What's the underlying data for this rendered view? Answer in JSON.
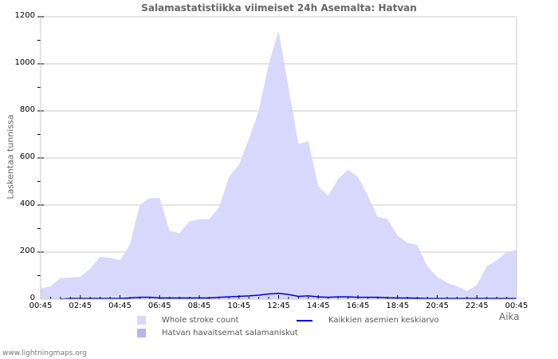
{
  "header": {
    "title": "Salamastatistiikka viimeiset 24h Asemalta: Hatvan"
  },
  "footer": {
    "source": "www.lightningmaps.org"
  },
  "legend": {
    "whole": "Whole stroke count",
    "station": "Hatvan havaitsemat salamaniskut",
    "average": "Kaikkien asemien keskiarvo"
  },
  "colors": {
    "whole": "#d8d8fc",
    "station": "#b4b4f8",
    "average": "#0000cc",
    "grid": "#c8c8c8"
  },
  "chart_data": {
    "type": "area",
    "title": "Salamastatistiikka viimeiset 24h Asemalta: Hatvan",
    "xlabel": "Aika",
    "ylabel": "Laskentaa tunnissa",
    "ylim": [
      0,
      1200
    ],
    "yticks": [
      "0",
      "200",
      "400",
      "600",
      "800",
      "1000",
      "1200"
    ],
    "xticks": [
      "00:45",
      "02:45",
      "04:45",
      "06:45",
      "08:45",
      "10:45",
      "12:45",
      "14:45",
      "16:45",
      "18:45",
      "20:45",
      "22:45",
      "00:45"
    ],
    "grid": true,
    "legend_position": "bottom",
    "x": [
      "00:45",
      "01:15",
      "01:45",
      "02:15",
      "02:45",
      "03:15",
      "03:45",
      "04:15",
      "04:45",
      "05:15",
      "05:45",
      "06:15",
      "06:45",
      "07:15",
      "07:45",
      "08:15",
      "08:45",
      "09:15",
      "09:45",
      "10:15",
      "10:45",
      "11:15",
      "11:45",
      "12:15",
      "12:45",
      "13:15",
      "13:45",
      "14:15",
      "14:45",
      "15:15",
      "15:45",
      "16:15",
      "16:45",
      "17:15",
      "17:45",
      "18:15",
      "18:45",
      "19:15",
      "19:45",
      "20:15",
      "20:45",
      "21:15",
      "21:45",
      "22:15",
      "22:45",
      "23:15",
      "23:45",
      "00:15",
      "00:45"
    ],
    "series": [
      {
        "name": "Whole stroke count",
        "values": [
          45,
          55,
          90,
          92,
          95,
          130,
          180,
          175,
          165,
          230,
          400,
          430,
          430,
          290,
          280,
          330,
          340,
          340,
          390,
          520,
          570,
          680,
          800,
          1000,
          1140,
          900,
          660,
          670,
          480,
          440,
          510,
          550,
          520,
          440,
          350,
          340,
          270,
          240,
          230,
          140,
          95,
          70,
          55,
          35,
          60,
          140,
          165,
          200,
          210
        ]
      },
      {
        "name": "Hatvan havaitsemat salamaniskut",
        "values": [
          0,
          0,
          0,
          0,
          0,
          0,
          0,
          0,
          0,
          0,
          0,
          0,
          0,
          0,
          0,
          0,
          0,
          0,
          0,
          0,
          0,
          0,
          0,
          0,
          0,
          0,
          0,
          0,
          0,
          0,
          0,
          0,
          0,
          0,
          0,
          0,
          0,
          0,
          0,
          0,
          0,
          0,
          0,
          0,
          0,
          0,
          0,
          0,
          0
        ]
      },
      {
        "name": "Kaikkien asemien keskiarvo",
        "values": [
          0,
          0,
          0,
          3,
          3,
          3,
          3,
          3,
          3,
          5,
          8,
          8,
          5,
          5,
          5,
          5,
          5,
          5,
          8,
          10,
          12,
          14,
          17,
          22,
          25,
          20,
          12,
          14,
          10,
          8,
          10,
          10,
          8,
          8,
          8,
          6,
          5,
          5,
          4,
          3,
          3,
          3,
          3,
          3,
          3,
          3,
          3,
          3,
          3
        ]
      }
    ]
  }
}
